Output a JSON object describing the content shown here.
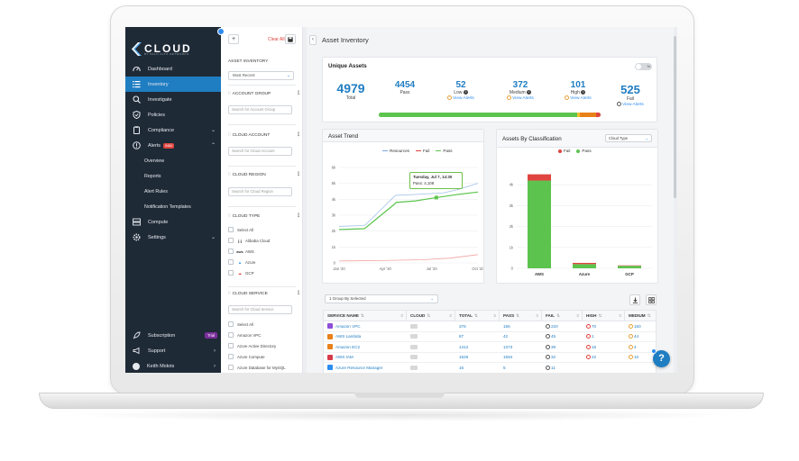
{
  "sidebar": {
    "logo_text": "CLOUD",
    "logo_sub": "BY PALO ALTO NETWORKS",
    "items": [
      {
        "label": "Dashboard",
        "icon": "gauge-icon"
      },
      {
        "label": "Inventory",
        "icon": "list-icon"
      },
      {
        "label": "Investigate",
        "icon": "search-icon"
      },
      {
        "label": "Policies",
        "icon": "shield-icon"
      },
      {
        "label": "Compliance",
        "icon": "clipboard-icon"
      },
      {
        "label": "Alerts",
        "icon": "alert-icon",
        "count": "5484"
      },
      {
        "label": "Compute",
        "icon": "compute-icon"
      },
      {
        "label": "Settings",
        "icon": "gear-icon"
      }
    ],
    "alert_subitems": [
      "Overview",
      "Reports",
      "Alert Rules",
      "Notification Templates"
    ],
    "bottom": {
      "subscription": "Subscription",
      "trial": "Trial",
      "support": "Support",
      "user": "Keith Mokris"
    }
  },
  "filters": {
    "add": "+",
    "clear_all": "Clear All",
    "asset_inventory_label": "ASSET INVENTORY",
    "asset_inventory_value": "Most Recent",
    "sections": [
      {
        "title": "ACCOUNT GROUP",
        "placeholder": "Search for Account Group"
      },
      {
        "title": "CLOUD ACCOUNT",
        "placeholder": "Search for Cloud Account"
      },
      {
        "title": "CLOUD REGION",
        "placeholder": "Search for Cloud Region"
      }
    ],
    "cloud_type": {
      "title": "CLOUD TYPE",
      "options": [
        "Select All",
        "Alibaba Cloud",
        "AWS",
        "Azure",
        "GCP"
      ]
    },
    "cloud_service": {
      "title": "CLOUD SERVICE",
      "placeholder": "Search for Cloud Service",
      "options": [
        "Select All",
        "Amazon VPC",
        "Azure Active Directory",
        "Azure Compute",
        "Azure Database for MySQL"
      ]
    }
  },
  "main": {
    "title": "Asset Inventory",
    "unique_assets": {
      "title": "Unique Assets",
      "toggle_label": "%",
      "total": {
        "value": "4979",
        "label": "Total"
      },
      "pass": {
        "value": "4454",
        "label": "Pass"
      },
      "low": {
        "value": "52",
        "label": "Low",
        "link": "View Alerts"
      },
      "medium": {
        "value": "372",
        "label": "Medium",
        "link": "View Alerts"
      },
      "high": {
        "value": "101",
        "label": "High",
        "link": "View Alerts"
      },
      "fail": {
        "value": "525",
        "label": "Fail",
        "link": "View Alerts"
      },
      "progress": {
        "pass": 0.895,
        "low": 0.01,
        "medium": 0.075,
        "high": 0.02
      }
    },
    "asset_trend": {
      "title": "Asset Trend",
      "legend": [
        "Resources",
        "Fail",
        "Pass"
      ],
      "tooltip_date": "Tuesday, Jul 7, 14:30",
      "tooltip_value": "Pass: 4,108"
    },
    "by_classification": {
      "title": "Assets By Classification",
      "select": "Cloud Type",
      "legend": [
        "Fail",
        "Pass"
      ]
    },
    "table": {
      "group_by": "1 Group By Selected",
      "columns": [
        "SERVICE NAME",
        "CLOUD",
        "TOTAL",
        "PASS",
        "FAIL",
        "HIGH",
        "MEDIUM"
      ],
      "rows": [
        {
          "service": "Amazon VPC",
          "total": "376",
          "pass": "156",
          "fail": "220",
          "high": "70",
          "medium": "150",
          "color": "#8c4fd6"
        },
        {
          "service": "AWS Lambda",
          "total": "87",
          "pass": "42",
          "fail": "45",
          "high": "1",
          "medium": "44",
          "color": "#e8811a"
        },
        {
          "service": "Amazon EC2",
          "total": "1412",
          "pass": "1373",
          "fail": "39",
          "high": "15",
          "medium": "4",
          "color": "#e8811a"
        },
        {
          "service": "AWS IAM",
          "total": "1626",
          "pass": "1594",
          "fail": "32",
          "high": "22",
          "medium": "10",
          "color": "#d63b4a"
        },
        {
          "service": "Azure Resource Manager",
          "total": "16",
          "pass": "5",
          "fail": "11",
          "high": "",
          "medium": "",
          "color": "#2d8cf0"
        }
      ]
    },
    "help": "?"
  },
  "colors": {
    "sidebar_bg": "#1f2a37",
    "active": "#1f7dc2",
    "pass": "#5cc44e",
    "fail": "#e0443e",
    "resources": "#7aa7e0"
  },
  "chart_data": [
    {
      "type": "line",
      "title": "Asset Trend",
      "x": [
        "Jan '20",
        "Apr '20",
        "Jul '20",
        "Oct '20"
      ],
      "ylim": [
        0,
        6000
      ],
      "yticks": [
        "0",
        "1k",
        "2k",
        "3k",
        "4k",
        "5k",
        "6k"
      ],
      "series": [
        {
          "name": "Resources",
          "x": [
            0.0,
            0.18,
            0.19,
            0.4,
            0.41,
            0.55,
            0.75,
            0.85,
            1.0
          ],
          "values": [
            2300,
            2350,
            2400,
            4200,
            4250,
            4300,
            4400,
            4600,
            5000
          ]
        },
        {
          "name": "Fail",
          "x": [
            0.0,
            0.3,
            0.6,
            0.8,
            1.0
          ],
          "values": [
            120,
            150,
            200,
            300,
            520
          ]
        },
        {
          "name": "Pass",
          "x": [
            0.0,
            0.18,
            0.19,
            0.4,
            0.41,
            0.55,
            0.7,
            0.85,
            1.0
          ],
          "values": [
            2100,
            2150,
            2200,
            3700,
            3800,
            3900,
            4108,
            4300,
            4454
          ]
        }
      ],
      "grid": true,
      "legend_position": "top-center"
    },
    {
      "type": "bar",
      "title": "Assets By Classification",
      "categories": [
        "AWS",
        "Azure",
        "GCP"
      ],
      "series": [
        {
          "name": "Pass",
          "values": [
            4200,
            200,
            120
          ]
        },
        {
          "name": "Fail",
          "values": [
            300,
            60,
            20
          ]
        }
      ],
      "ylim": [
        0,
        5000
      ],
      "yticks": [
        "0",
        "1k",
        "2k",
        "3k",
        "4k"
      ],
      "stacked": true,
      "legend_position": "top-center"
    }
  ]
}
